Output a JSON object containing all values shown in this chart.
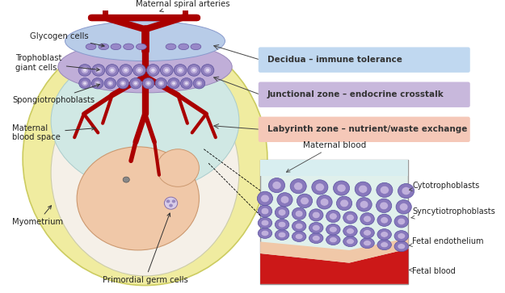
{
  "bg_color": "#ffffff",
  "fig_width": 6.25,
  "fig_height": 3.63,
  "dpi": 100,
  "labels": {
    "maternal_spiral_arteries": "Maternal spiral arteries",
    "glycogen_cells": "Glycogen cells",
    "trophoblast_giant_cells": "Trophoblast\ngiant cells",
    "spongiotrophoblasts": "Spongiotrophoblasts",
    "maternal_blood_space": "Maternal\nblood space",
    "myometrium": "Myometrium",
    "primordial_germ_cells": "Primordial germ cells",
    "decidua": "Decidua – immune tolerance",
    "junctional": "Junctional zone – endocrine crosstalk",
    "labyrinth": "Labyrinth zone – nutrient/waste exchange",
    "maternal_blood": "Maternal blood",
    "cytotrophoblasts": "Cytotrophoblasts",
    "syncytiotrophoblasts": "Syncytiotrophoblasts",
    "fetal_endothelium": "Fetal endothelium",
    "fetal_blood": "Fetal blood"
  },
  "colors": {
    "dark_red": "#AA0000",
    "red_vessel": "#CC1111",
    "yellow_outer": "#F0ECA0",
    "blue_decidua": "#B8CCE8",
    "purple_junctional": "#C0AED8",
    "light_blue_labyrinth": "#D0E8E4",
    "cream_lower": "#F5F0E8",
    "fetal_skin": "#F0C8A8",
    "purple_cell_outer": "#9080BC",
    "purple_cell_inner": "#B0A0D0",
    "purple_cell_nucleus": "#E8E0F0",
    "box_decidua_bg": "#C0D8F0",
    "box_junctional_bg": "#C8B8DC",
    "box_labyrinth_bg": "#F5C8B8",
    "inset_bg": "#D8EEE8",
    "inset_border": "#999999",
    "fetal_blood_red": "#CC1818",
    "fetal_endo_color": "#F0C8A8",
    "arrow_color": "#333333",
    "outline": "#888888",
    "vessel_outline": "#880000"
  }
}
